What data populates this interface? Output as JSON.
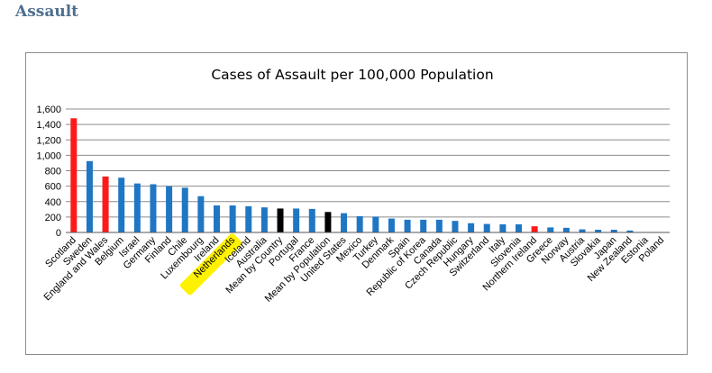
{
  "page": {
    "heading": "Assault"
  },
  "chart_data": {
    "type": "bar",
    "title": "Cases of Assault per 100,000 Population",
    "xlabel": "",
    "ylabel": "",
    "ylim": [
      0,
      1600
    ],
    "yticks": [
      0,
      200,
      400,
      600,
      800,
      1000,
      1200,
      1400,
      1600
    ],
    "ytick_labels": [
      "0",
      "200",
      "400",
      "600",
      "800",
      "1,000",
      "1,200",
      "1,400",
      "1,600"
    ],
    "grid": true,
    "legend": "none",
    "colors": {
      "default": "#1f77c4",
      "uk": "#ff1a1a",
      "mean": "#000000",
      "grid": "#8c8c8c",
      "highlight": "#fff200"
    },
    "highlighted_category": "Netherlands",
    "categories": [
      "Scotland",
      "Sweden",
      "England and Wales",
      "Belgium",
      "Israel",
      "Germany",
      "Finland",
      "Chile",
      "Luxembourg",
      "Ireland",
      "Netherlands",
      "Iceland",
      "Australia",
      "Mean by Country",
      "Portugal",
      "France",
      "Mean by Population",
      "United States",
      "Mexico",
      "Turkey",
      "Denmark",
      "Spain",
      "Republic of Korea",
      "Canada",
      "Czech Republic",
      "Hungary",
      "Switzerland",
      "Italy",
      "Slovenia",
      "Northern Ireland",
      "Greece",
      "Norway",
      "Austria",
      "Slovakia",
      "Japan",
      "New Zealand",
      "Estonia",
      "Poland"
    ],
    "values": [
      1480,
      925,
      725,
      710,
      635,
      625,
      600,
      580,
      470,
      350,
      350,
      340,
      325,
      310,
      310,
      305,
      265,
      250,
      210,
      205,
      180,
      165,
      165,
      165,
      150,
      120,
      110,
      105,
      105,
      80,
      65,
      60,
      40,
      35,
      35,
      25,
      5,
      5
    ],
    "bar_groups": [
      "uk",
      "default",
      "uk",
      "default",
      "default",
      "default",
      "default",
      "default",
      "default",
      "default",
      "default",
      "default",
      "default",
      "mean",
      "default",
      "default",
      "mean",
      "default",
      "default",
      "default",
      "default",
      "default",
      "default",
      "default",
      "default",
      "default",
      "default",
      "default",
      "default",
      "uk",
      "default",
      "default",
      "default",
      "default",
      "default",
      "default",
      "default",
      "default"
    ]
  }
}
